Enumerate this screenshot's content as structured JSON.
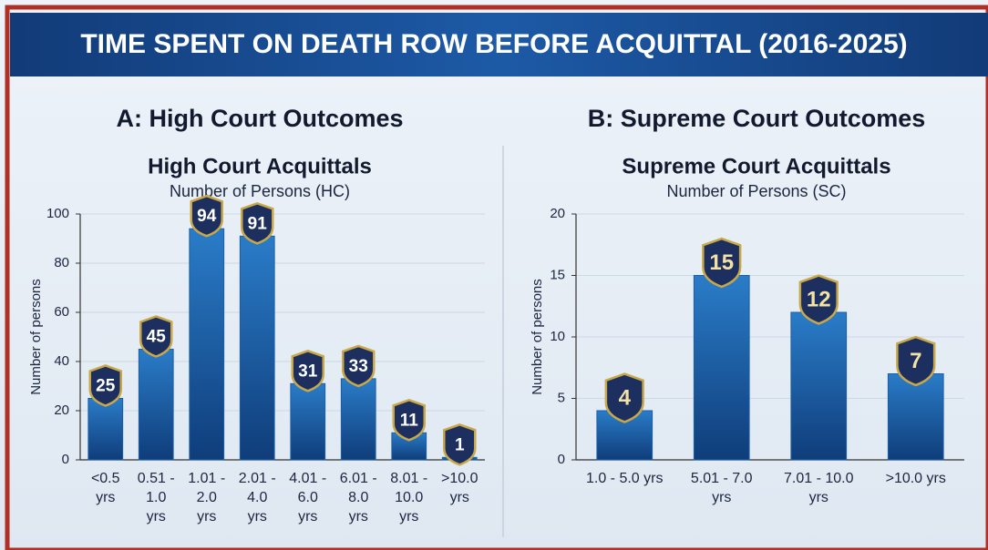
{
  "title": "TIME SPENT ON DEATH ROW BEFORE ACQUITTAL (2016-2025)",
  "chart_data": [
    {
      "type": "bar",
      "panel_title": "A: High Court Outcomes",
      "title": "High Court Acquittals",
      "subtitle": "Number of Persons (HC)",
      "ylabel": "Number of persons",
      "categories": [
        "<0.5 yrs",
        "0.51 - 1.0 yrs",
        "1.01 - 2.0 yrs",
        "2.01 - 4.0 yrs",
        "4.01 - 6.0 yrs",
        "6.01 - 8.0 yrs",
        "8.01 - 10.0 yrs",
        ">10.0 yrs"
      ],
      "values": [
        25,
        45,
        94,
        91,
        31,
        33,
        11,
        1
      ],
      "color": "#1a5fa8",
      "ylim": [
        0,
        100
      ],
      "yticks": [
        0,
        20,
        40,
        60,
        80,
        100
      ],
      "grid": true
    },
    {
      "type": "bar",
      "panel_title": "B: Supreme Court Outcomes",
      "title": "Supreme Court Acquittals",
      "subtitle": "Number of Persons (SC)",
      "ylabel": "Number of persons",
      "categories": [
        "1.0 - 5.0 yrs",
        "5.01 - 7.0 yrs",
        "7.01 - 10.0 yrs",
        ">10.0 yrs"
      ],
      "values": [
        4,
        15,
        12,
        7
      ],
      "color": "#1a5fa8",
      "ylim": [
        0,
        20
      ],
      "yticks": [
        0,
        5,
        10,
        15,
        20
      ],
      "grid": true
    }
  ]
}
